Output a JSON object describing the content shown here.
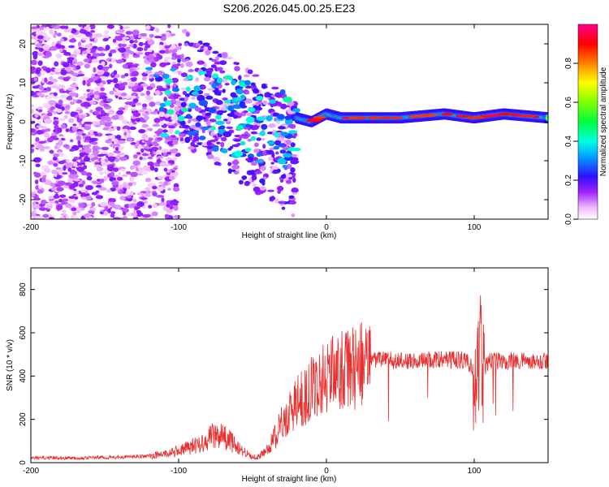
{
  "title": "S206.2026.045.00.25.E23",
  "chart_data": [
    {
      "type": "heatmap",
      "title": "S206.2026.045.00.25.E23",
      "xlabel": "Height of straight line (km)",
      "ylabel": "Frequency (Hz)",
      "xlim": [
        -200,
        150
      ],
      "ylim": [
        -25,
        25
      ],
      "xticks": [
        {
          "value": -200,
          "label": "-200"
        },
        {
          "value": -100,
          "label": "-100"
        },
        {
          "value": 0,
          "label": "0"
        },
        {
          "value": 100,
          "label": "100"
        }
      ],
      "yticks": [
        {
          "value": -20,
          "label": "-20"
        },
        {
          "value": -10,
          "label": "-10"
        },
        {
          "value": 0,
          "label": "0"
        },
        {
          "value": 10,
          "label": "10"
        },
        {
          "value": 20,
          "label": "20"
        }
      ],
      "colorbar": {
        "label": "Normalized spectral amplitude",
        "range": [
          0,
          1
        ],
        "ticks": [
          {
            "value": 0.0,
            "label": "0.0"
          },
          {
            "value": 0.2,
            "label": "0.2"
          },
          {
            "value": 0.4,
            "label": "0.4"
          },
          {
            "value": 0.6,
            "label": "0.6"
          },
          {
            "value": 0.8,
            "label": "0.8"
          }
        ]
      },
      "ridge": {
        "description_points_x": [
          -20,
          -10,
          0,
          10,
          30,
          50,
          80,
          100,
          120,
          150
        ],
        "frequency_y": [
          1,
          0,
          2,
          1,
          1,
          1,
          2,
          1,
          2,
          1
        ]
      }
    },
    {
      "type": "line",
      "xlabel": "Height of straight line (km)",
      "ylabel": "SNR (10 * v/v)",
      "xlim": [
        -200,
        150
      ],
      "ylim": [
        0,
        900
      ],
      "color": "#e83030",
      "xticks": [
        {
          "value": -200,
          "label": "-200"
        },
        {
          "value": -100,
          "label": "-100"
        },
        {
          "value": 0,
          "label": "0"
        },
        {
          "value": 100,
          "label": "100"
        }
      ],
      "yticks": [
        {
          "value": 0,
          "label": "0"
        },
        {
          "value": 200,
          "label": "200"
        },
        {
          "value": 400,
          "label": "400"
        },
        {
          "value": 600,
          "label": "600"
        },
        {
          "value": 800,
          "label": "800"
        }
      ],
      "series": [
        {
          "name": "SNR",
          "x": [
            -200,
            -170,
            -140,
            -120,
            -105,
            -95,
            -85,
            -78,
            -72,
            -65,
            -58,
            -50,
            -45,
            -40,
            -35,
            -28,
            -20,
            -15,
            -10,
            -5,
            0,
            10,
            20,
            30,
            38,
            45,
            55,
            70,
            85,
            95,
            100,
            103,
            106,
            110,
            125,
            140,
            150
          ],
          "y": [
            22,
            22,
            25,
            30,
            45,
            65,
            90,
            120,
            130,
            100,
            60,
            25,
            30,
            60,
            120,
            200,
            280,
            300,
            340,
            370,
            410,
            420,
            440,
            470,
            480,
            470,
            470,
            475,
            475,
            475,
            420,
            520,
            420,
            470,
            470,
            470,
            470
          ]
        }
      ]
    }
  ]
}
